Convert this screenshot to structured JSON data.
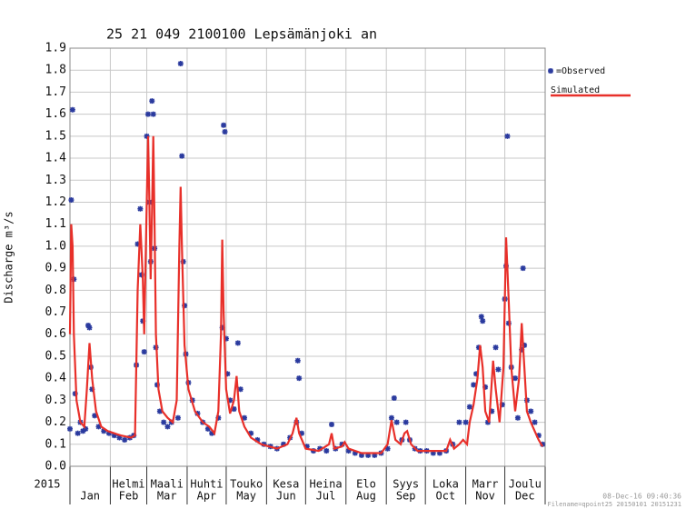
{
  "chart_data": {
    "type": "line",
    "title": "25 21 049 2100100 Lepsämänjoki an",
    "y_label": "Discharge m³/s",
    "year_label": "2015",
    "months": [
      {
        "en": "Jan"
      },
      {
        "fi": "Helmi",
        "en": "Feb"
      },
      {
        "fi": "Maali",
        "en": "Mar"
      },
      {
        "fi": "Huhti",
        "en": "Apr"
      },
      {
        "fi": "Touko",
        "en": "May"
      },
      {
        "fi": "Kesa",
        "en": "Jun"
      },
      {
        "fi": "Heina",
        "en": "Jul"
      },
      {
        "fi": "Elo",
        "en": "Aug"
      },
      {
        "fi": "Syys",
        "en": "Sep"
      },
      {
        "fi": "Loka",
        "en": "Oct"
      },
      {
        "fi": "Marr",
        "en": "Nov"
      },
      {
        "fi": "Joulu",
        "en": "Dec"
      }
    ],
    "xlim": [
      1,
      366
    ],
    "xticks": [
      1,
      32,
      60,
      91,
      121,
      152,
      182,
      213,
      244,
      274,
      305,
      335,
      366
    ],
    "ylim": [
      0,
      1.9
    ],
    "yticks": [
      {
        "value": 0,
        "label": "0.0"
      },
      0.1,
      0.2,
      0.3,
      0.4,
      0.5,
      0.6,
      0.7,
      0.8,
      0.9,
      {
        "value": 1,
        "label": "1.0"
      },
      1.1,
      1.2,
      1.3,
      1.4,
      1.5,
      1.6,
      1.7,
      1.8,
      1.9
    ],
    "grid": true,
    "series": [
      {
        "name": "=Observed",
        "color": "#2a3a9e",
        "marker": "asterisk",
        "x": [
          1,
          2,
          3,
          4,
          5,
          7,
          9,
          11,
          13,
          15,
          16,
          17,
          18,
          20,
          23,
          27,
          31,
          35,
          39,
          43,
          47,
          50,
          52,
          53,
          55,
          56,
          57,
          58,
          60,
          61,
          62,
          63,
          64,
          65,
          66,
          67,
          68,
          70,
          73,
          76,
          79,
          84,
          86,
          87,
          88,
          89,
          90,
          92,
          95,
          99,
          103,
          107,
          110,
          115,
          118,
          119,
          120,
          121,
          122,
          124,
          127,
          130,
          132,
          135,
          140,
          145,
          150,
          155,
          160,
          165,
          170,
          175,
          176,
          177,
          179,
          183,
          188,
          193,
          198,
          202,
          205,
          210,
          215,
          220,
          225,
          230,
          235,
          240,
          245,
          248,
          250,
          252,
          256,
          259,
          262,
          266,
          270,
          275,
          280,
          285,
          290,
          295,
          300,
          305,
          308,
          311,
          313,
          315,
          317,
          318,
          320,
          322,
          325,
          328,
          330,
          333,
          335,
          336,
          337,
          338,
          340,
          343,
          345,
          348,
          349,
          350,
          352,
          355,
          358,
          361,
          364
        ],
        "values": [
          0.17,
          1.21,
          1.62,
          0.85,
          0.33,
          0.15,
          0.2,
          0.16,
          0.17,
          0.64,
          0.63,
          0.45,
          0.35,
          0.23,
          0.18,
          0.16,
          0.15,
          0.14,
          0.13,
          0.12,
          0.13,
          0.14,
          0.46,
          1.01,
          1.17,
          0.87,
          0.66,
          0.52,
          1.5,
          1.6,
          1.2,
          0.93,
          1.66,
          1.6,
          0.99,
          0.54,
          0.37,
          0.25,
          0.2,
          0.18,
          0.2,
          0.22,
          1.83,
          1.41,
          0.93,
          0.73,
          0.51,
          0.38,
          0.3,
          0.24,
          0.2,
          0.17,
          0.15,
          0.22,
          0.63,
          1.55,
          1.52,
          0.58,
          0.42,
          0.3,
          0.26,
          0.56,
          0.35,
          0.22,
          0.15,
          0.12,
          0.1,
          0.09,
          0.08,
          0.1,
          0.13,
          0.2,
          0.48,
          0.4,
          0.15,
          0.09,
          0.07,
          0.08,
          0.07,
          0.19,
          0.08,
          0.1,
          0.07,
          0.06,
          0.05,
          0.05,
          0.05,
          0.06,
          0.08,
          0.22,
          0.31,
          0.2,
          0.12,
          0.2,
          0.12,
          0.08,
          0.07,
          0.07,
          0.06,
          0.06,
          0.07,
          0.1,
          0.2,
          0.2,
          0.27,
          0.37,
          0.42,
          0.54,
          0.68,
          0.66,
          0.36,
          0.2,
          0.25,
          0.54,
          0.44,
          0.28,
          0.76,
          0.91,
          1.5,
          0.65,
          0.45,
          0.4,
          0.22,
          0.53,
          0.9,
          0.55,
          0.3,
          0.25,
          0.2,
          0.14,
          0.1
        ]
      },
      {
        "name": "Simulated",
        "color": "#e8302a",
        "marker": "line",
        "x": [
          1,
          2,
          3,
          4,
          6,
          9,
          12,
          14,
          16,
          18,
          21,
          25,
          30,
          40,
          48,
          51,
          53,
          55,
          57,
          58,
          60,
          61,
          62,
          63,
          64,
          65,
          66,
          67,
          69,
          72,
          76,
          80,
          83,
          85,
          86,
          87,
          89,
          92,
          97,
          103,
          108,
          112,
          115,
          117,
          118,
          119,
          121,
          124,
          127,
          129,
          131,
          135,
          140,
          148,
          160,
          168,
          172,
          175,
          177,
          182,
          192,
          200,
          202,
          204,
          210,
          212,
          215,
          225,
          240,
          245,
          248,
          251,
          255,
          258,
          260,
          263,
          268,
          290,
          293,
          296,
          300,
          303,
          306,
          308,
          311,
          314,
          316,
          318,
          320,
          323,
          326,
          328,
          331,
          334,
          336,
          338,
          340,
          343,
          346,
          348,
          350,
          352,
          355,
          358,
          361,
          364
        ],
        "values": [
          0.6,
          1.1,
          1.0,
          0.6,
          0.3,
          0.2,
          0.18,
          0.35,
          0.56,
          0.4,
          0.25,
          0.18,
          0.16,
          0.14,
          0.13,
          0.14,
          0.8,
          1.1,
          0.85,
          0.6,
          1.2,
          1.5,
          1.2,
          0.85,
          1.15,
          1.5,
          1.1,
          0.6,
          0.35,
          0.25,
          0.22,
          0.2,
          0.3,
          1.0,
          1.27,
          1.0,
          0.55,
          0.35,
          0.25,
          0.2,
          0.18,
          0.15,
          0.25,
          0.6,
          1.03,
          0.7,
          0.35,
          0.24,
          0.3,
          0.41,
          0.25,
          0.18,
          0.13,
          0.1,
          0.08,
          0.1,
          0.15,
          0.22,
          0.15,
          0.08,
          0.07,
          0.1,
          0.15,
          0.08,
          0.09,
          0.11,
          0.08,
          0.06,
          0.06,
          0.1,
          0.21,
          0.12,
          0.1,
          0.15,
          0.16,
          0.1,
          0.07,
          0.07,
          0.12,
          0.08,
          0.1,
          0.12,
          0.1,
          0.2,
          0.28,
          0.4,
          0.55,
          0.45,
          0.25,
          0.2,
          0.48,
          0.35,
          0.2,
          0.45,
          1.04,
          0.75,
          0.45,
          0.25,
          0.4,
          0.65,
          0.45,
          0.25,
          0.2,
          0.16,
          0.12,
          0.09
        ]
      }
    ],
    "footer": [
      "08-Dec-16 09:40:36",
      "Filename=qpoint25 20150101 20151231"
    ]
  }
}
